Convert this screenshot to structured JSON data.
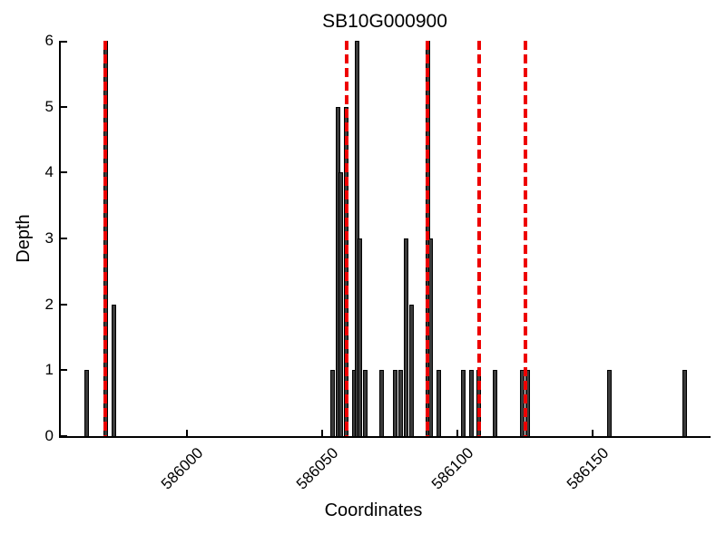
{
  "chart_data": {
    "type": "bar",
    "title": "SB10G000900",
    "xlabel": "Coordinates",
    "ylabel": "Depth",
    "xlim": [
      585953.5,
      586193.5
    ],
    "ylim": [
      0,
      6
    ],
    "xticks": [
      586000,
      586050,
      586100,
      586150
    ],
    "yticks": [
      0,
      1,
      2,
      3,
      4,
      5,
      6
    ],
    "grid": false,
    "bar_color": "#3a3a3a",
    "bar_edge_color": "#000000",
    "red_line_color": "#ee0000",
    "axis_color": "#000000",
    "bars": [
      {
        "x": 585963,
        "depth": 1
      },
      {
        "x": 585970,
        "depth": 6
      },
      {
        "x": 585973,
        "depth": 2
      },
      {
        "x": 586054,
        "depth": 1
      },
      {
        "x": 586056,
        "depth": 5
      },
      {
        "x": 586057,
        "depth": 4
      },
      {
        "x": 586059,
        "depth": 5
      },
      {
        "x": 586062,
        "depth": 1
      },
      {
        "x": 586063,
        "depth": 6
      },
      {
        "x": 586064,
        "depth": 3
      },
      {
        "x": 586066,
        "depth": 1
      },
      {
        "x": 586072,
        "depth": 1
      },
      {
        "x": 586077,
        "depth": 1
      },
      {
        "x": 586079,
        "depth": 1
      },
      {
        "x": 586081,
        "depth": 3
      },
      {
        "x": 586083,
        "depth": 2
      },
      {
        "x": 586089,
        "depth": 6
      },
      {
        "x": 586090,
        "depth": 3
      },
      {
        "x": 586093,
        "depth": 1
      },
      {
        "x": 586102,
        "depth": 1
      },
      {
        "x": 586105,
        "depth": 1
      },
      {
        "x": 586108,
        "depth": 1
      },
      {
        "x": 586114,
        "depth": 1
      },
      {
        "x": 586124,
        "depth": 1
      },
      {
        "x": 586126,
        "depth": 1
      },
      {
        "x": 586156,
        "depth": 1
      },
      {
        "x": 586184,
        "depth": 1
      }
    ],
    "red_dashed_lines": [
      585970,
      586059,
      586089,
      586108,
      586125
    ]
  }
}
